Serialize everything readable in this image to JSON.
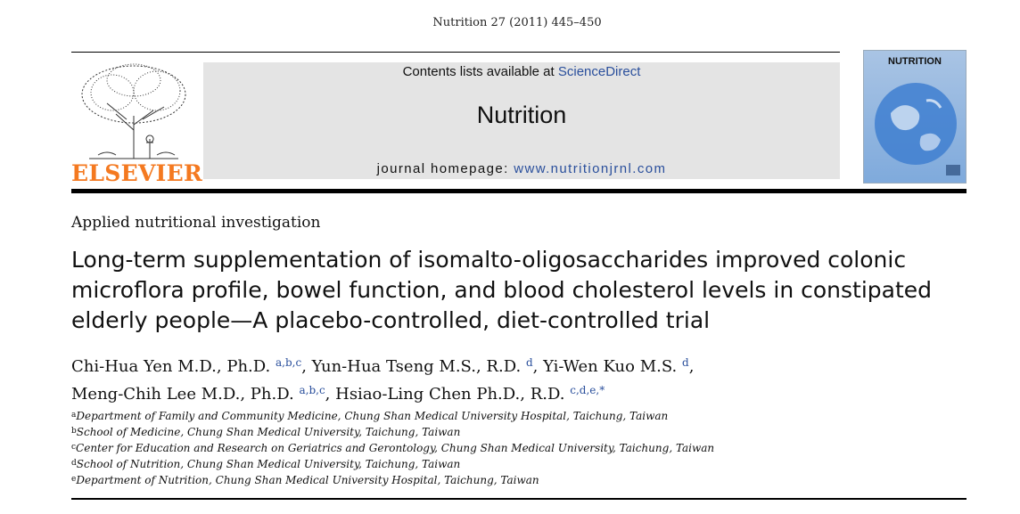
{
  "citation": "Nutrition 27 (2011) 445–450",
  "publisher": {
    "name": "ELSEVIER",
    "logo_icon": "tree-of-knowledge-icon"
  },
  "masthead": {
    "contents_prefix": "Contents lists available at ",
    "contents_link": "ScienceDirect",
    "journal_title": "Nutrition",
    "homepage_prefix": "journal homepage: ",
    "homepage_url": "www.nutritionjrnl.com"
  },
  "cover": {
    "title": "NUTRITION",
    "icon": "earth-globe-icon"
  },
  "section_label": "Applied nutritional investigation",
  "title": "Long-term supplementation of isomalto-oligosaccharides improved colonic microflora profile, bowel function, and blood cholesterol levels in constipated elderly people—A placebo-controlled, diet-controlled trial",
  "authors": [
    {
      "name": "Chi-Hua Yen M.D., Ph.D.",
      "sup": "a,b,c",
      "sep": ", "
    },
    {
      "name": "Yun-Hua Tseng M.S., R.D.",
      "sup": "d",
      "sep": ", "
    },
    {
      "name": "Yi-Wen Kuo M.S.",
      "sup": "d",
      "sep": ","
    },
    {
      "name": "Meng-Chih Lee M.D., Ph.D.",
      "sup": "a,b,c",
      "sep": ", "
    },
    {
      "name": "Hsiao-Ling Chen Ph.D., R.D.",
      "sup": "c,d,e,*",
      "sep": ""
    }
  ],
  "affiliations": [
    {
      "key": "a",
      "text": "Department of Family and Community Medicine, Chung Shan Medical University Hospital, Taichung, Taiwan"
    },
    {
      "key": "b",
      "text": "School of Medicine, Chung Shan Medical University, Taichung, Taiwan"
    },
    {
      "key": "c",
      "text": "Center for Education and Research on Geriatrics and Gerontology, Chung Shan Medical University, Taichung, Taiwan"
    },
    {
      "key": "d",
      "text": "School of Nutrition, Chung Shan Medical University, Taichung, Taiwan"
    },
    {
      "key": "e",
      "text": "Department of Nutrition, Chung Shan Medical University Hospital, Taichung, Taiwan"
    }
  ],
  "colors": {
    "elsevier_orange": "#f47920",
    "link_blue": "#2a4f9c",
    "masthead_gray": "#e4e4e4"
  }
}
